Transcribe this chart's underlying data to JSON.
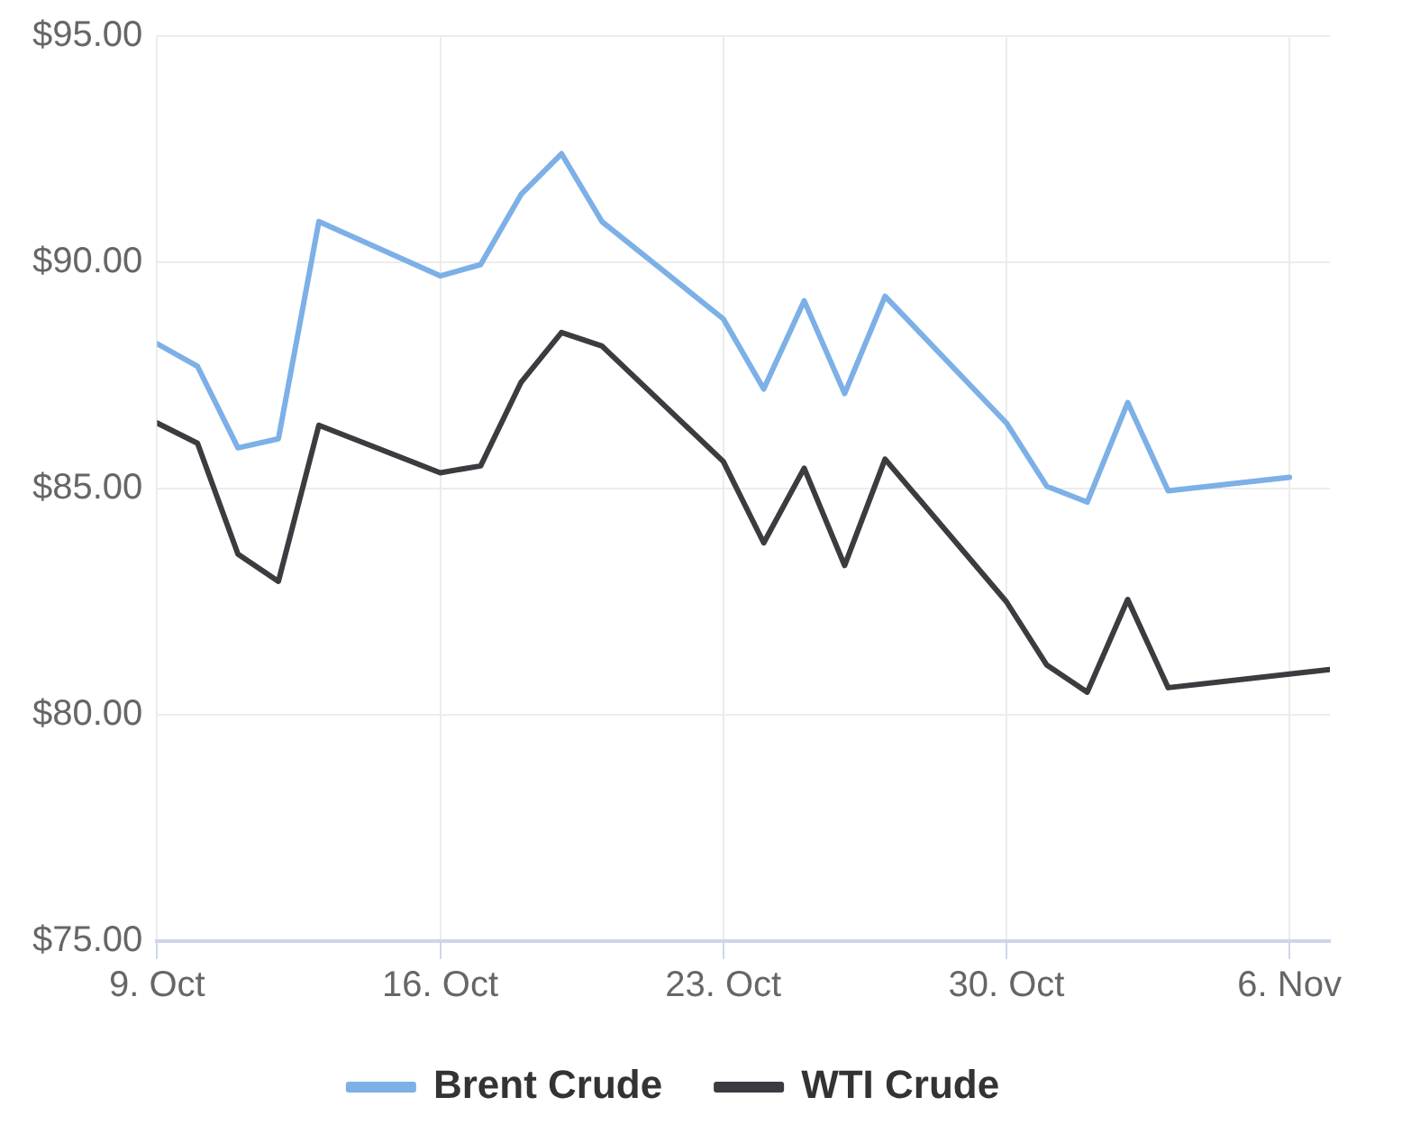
{
  "chart_data": {
    "type": "line",
    "xlim": [
      "--10-09",
      "--11-07"
    ],
    "xticks": [
      {
        "value": "--10-09",
        "label": "9. Oct"
      },
      {
        "value": "--10-16",
        "label": "16. Oct"
      },
      {
        "value": "--10-23",
        "label": "23. Oct"
      },
      {
        "value": "--10-30",
        "label": "30. Oct"
      },
      {
        "value": "--11-06",
        "label": "6. Nov"
      }
    ],
    "ylim": [
      75,
      95
    ],
    "yticks": [
      {
        "value": 75,
        "label": "$75.00"
      },
      {
        "value": 80,
        "label": "$80.00"
      },
      {
        "value": 85,
        "label": "$85.00"
      },
      {
        "value": 90,
        "label": "$90.00"
      },
      {
        "value": 95,
        "label": "$95.00"
      }
    ],
    "grid": true,
    "legend": "bottom",
    "marker": "none",
    "line_style": "solid",
    "series": [
      {
        "name": "Brent Crude",
        "color": "#7cb0e6",
        "x": [
          "--10-09",
          "--10-10",
          "--10-11",
          "--10-12",
          "--10-13",
          "--10-16",
          "--10-17",
          "--10-18",
          "--10-19",
          "--10-20",
          "--10-23",
          "--10-24",
          "--10-25",
          "--10-26",
          "--10-27",
          "--10-30",
          "--10-31",
          "--11-01",
          "--11-02",
          "--11-03",
          "--11-06"
        ],
        "values": [
          88.2,
          87.7,
          85.9,
          86.1,
          90.9,
          89.7,
          89.95,
          91.5,
          92.4,
          90.9,
          88.75,
          87.2,
          89.15,
          87.1,
          89.25,
          86.45,
          85.05,
          84.7,
          86.9,
          84.95,
          85.25
        ]
      },
      {
        "name": "WTI Crude",
        "color": "#3b3b40",
        "x": [
          "--10-09",
          "--10-10",
          "--10-11",
          "--10-12",
          "--10-13",
          "--10-16",
          "--10-17",
          "--10-18",
          "--10-19",
          "--10-20",
          "--10-23",
          "--10-24",
          "--10-25",
          "--10-26",
          "--10-27",
          "--10-30",
          "--10-31",
          "--11-01",
          "--11-02",
          "--11-03",
          "--11-06",
          "--11-07"
        ],
        "values": [
          86.45,
          86.0,
          83.55,
          82.95,
          86.4,
          85.35,
          85.5,
          87.35,
          88.45,
          88.15,
          85.6,
          83.8,
          85.45,
          83.3,
          85.65,
          82.5,
          81.1,
          80.5,
          82.55,
          80.6,
          80.9,
          81.0
        ]
      }
    ]
  }
}
